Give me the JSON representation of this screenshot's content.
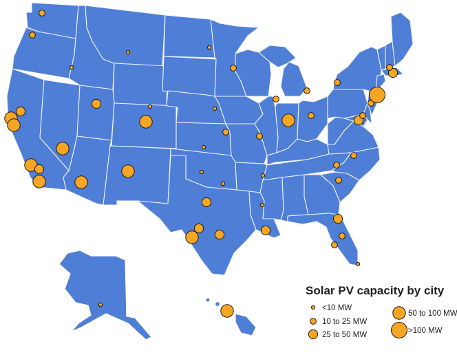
{
  "map": {
    "region": "United States",
    "land_color": "#4f7ed6",
    "border_color": "#ffffff",
    "marker_color": "#f6a623",
    "marker_outline": "#1b1b1b"
  },
  "legend": {
    "title": "Solar PV capacity by city",
    "items": [
      {
        "label": "<10 MW",
        "size_class": "xs"
      },
      {
        "label": "10 to 25 MW",
        "size_class": "s"
      },
      {
        "label": "25 to 50 MW",
        "size_class": "m"
      },
      {
        "label": "50 to 100 MW",
        "size_class": "l"
      },
      {
        "label": ">100 MW",
        "size_class": "xl"
      }
    ]
  },
  "cities": [
    {
      "name": "Seattle WA",
      "class": "s"
    },
    {
      "name": "Portland OR",
      "class": "s"
    },
    {
      "name": "Boise ID",
      "class": "xs"
    },
    {
      "name": "Billings MT",
      "class": "xs"
    },
    {
      "name": "Bismarck ND",
      "class": "xs"
    },
    {
      "name": "Minneapolis MN",
      "class": "s"
    },
    {
      "name": "Sacramento CA",
      "class": "m"
    },
    {
      "name": "San Francisco CA",
      "class": "l"
    },
    {
      "name": "San Jose CA",
      "class": "l"
    },
    {
      "name": "Fresno CA",
      "class": "m"
    },
    {
      "name": "Los Angeles CA",
      "class": "l"
    },
    {
      "name": "Riverside CA",
      "class": "m"
    },
    {
      "name": "San Diego CA",
      "class": "l"
    },
    {
      "name": "Las Vegas NV",
      "class": "l"
    },
    {
      "name": "Salt Lake City UT",
      "class": "m"
    },
    {
      "name": "Phoenix AZ",
      "class": "l"
    },
    {
      "name": "Albuquerque NM",
      "class": "l"
    },
    {
      "name": "Denver CO",
      "class": "l"
    },
    {
      "name": "Cheyenne WY",
      "class": "xs"
    },
    {
      "name": "Omaha NE",
      "class": "xs"
    },
    {
      "name": "Kansas City MO",
      "class": "s"
    },
    {
      "name": "Wichita KS",
      "class": "xs"
    },
    {
      "name": "Oklahoma City OK",
      "class": "xs"
    },
    {
      "name": "Tulsa OK",
      "class": "xs"
    },
    {
      "name": "Dallas TX",
      "class": "m"
    },
    {
      "name": "Austin TX",
      "class": "m"
    },
    {
      "name": "San Antonio TX",
      "class": "l"
    },
    {
      "name": "Houston TX",
      "class": "m"
    },
    {
      "name": "New Orleans LA",
      "class": "m"
    },
    {
      "name": "Jackson MS",
      "class": "xs"
    },
    {
      "name": "Memphis TN",
      "class": "xs"
    },
    {
      "name": "St. Louis MO",
      "class": "s"
    },
    {
      "name": "Chicago IL",
      "class": "s"
    },
    {
      "name": "Indianapolis IN",
      "class": "s"
    },
    {
      "name": "Cincinnati OH",
      "class": "l"
    },
    {
      "name": "Columbus OH",
      "class": "s"
    },
    {
      "name": "Detroit MI",
      "class": "s"
    },
    {
      "name": "Pittsburgh PA",
      "class": "s"
    },
    {
      "name": "Washington DC",
      "class": "m"
    },
    {
      "name": "Baltimore MD",
      "class": "s"
    },
    {
      "name": "Philadelphia PA",
      "class": "s"
    },
    {
      "name": "New York NY",
      "class": "l"
    },
    {
      "name": "Newark NJ",
      "class": "xl"
    },
    {
      "name": "Boston MA",
      "class": "m"
    },
    {
      "name": "Hartford CT",
      "class": "s"
    },
    {
      "name": "Atlanta GA",
      "class": "s"
    },
    {
      "name": "Charlotte NC",
      "class": "s"
    },
    {
      "name": "Raleigh NC",
      "class": "s"
    },
    {
      "name": "Jacksonville FL",
      "class": "m"
    },
    {
      "name": "Tampa FL",
      "class": "s"
    },
    {
      "name": "Orlando FL",
      "class": "s"
    },
    {
      "name": "Miami FL",
      "class": "xs"
    },
    {
      "name": "Honolulu HI",
      "class": "l"
    },
    {
      "name": "Anchorage AK",
      "class": "xs"
    }
  ]
}
